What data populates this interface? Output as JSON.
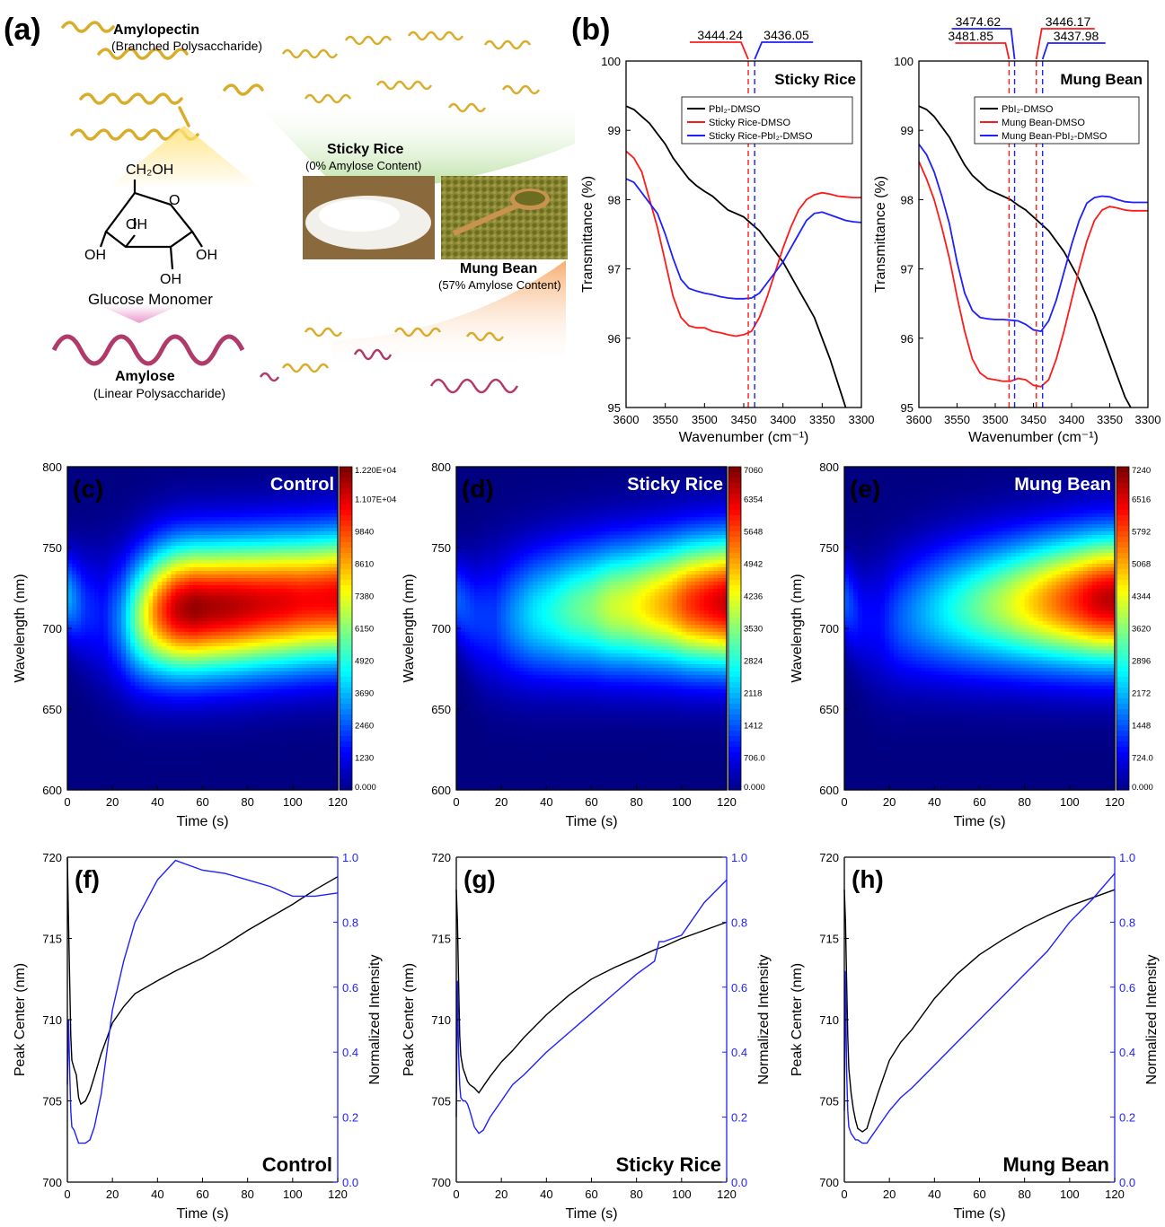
{
  "colors": {
    "black": "#000000",
    "red": "#ff1a1a",
    "blue": "#1f1fff",
    "amylopectin": "#d9ad2a",
    "amylose": "#b03a6a"
  },
  "panel_a": {
    "label": "(a)",
    "amylopectin_title": "Amylopectin",
    "amylopectin_sub": "(Branched Polysaccharide)",
    "glucose_ch2oh": "CH₂OH",
    "glucose_oh": "OH",
    "glucose_o": "O",
    "glucose_label": "Glucose Monomer",
    "amylose_title": "Amylose",
    "amylose_sub": "(Linear Polysaccharide)",
    "sticky_title": "Sticky Rice",
    "sticky_sub": "(0% Amylose Content)",
    "mung_title": "Mung Bean",
    "mung_sub": "(57% Amylose Content)"
  },
  "panel_b_label": "(b)",
  "chart_data": [
    {
      "panel": "(b)",
      "type": "line",
      "title": "Sticky Rice",
      "xlabel": "Wavenumber (cm⁻¹)",
      "ylabel": "Transmittance (%)",
      "xlim": [
        3600,
        3300
      ],
      "ylim": [
        95,
        100
      ],
      "xticks": [
        3600,
        3550,
        3500,
        3450,
        3400,
        3350,
        3300
      ],
      "yticks": [
        95,
        96,
        97,
        98,
        99,
        100
      ],
      "legend": "top-right",
      "peak_labels": [
        "3444.24",
        "3436.05"
      ],
      "peaks": [
        3444.24,
        3436.05
      ],
      "x": [
        3600,
        3590,
        3580,
        3570,
        3560,
        3550,
        3540,
        3530,
        3520,
        3510,
        3500,
        3490,
        3480,
        3470,
        3460,
        3450,
        3440,
        3430,
        3420,
        3410,
        3400,
        3390,
        3380,
        3370,
        3360,
        3350,
        3340,
        3330,
        3320,
        3310,
        3300
      ],
      "series": [
        {
          "name": "PbI₂-DMSO",
          "color": "#000000",
          "values": [
            99.35,
            99.3,
            99.2,
            99.1,
            98.95,
            98.8,
            98.6,
            98.45,
            98.3,
            98.2,
            98.12,
            98.05,
            97.95,
            97.85,
            97.8,
            97.75,
            97.65,
            97.55,
            97.4,
            97.25,
            97.1,
            96.9,
            96.7,
            96.5,
            96.3,
            96.0,
            95.7,
            95.35,
            95.0,
            94.8,
            94.6
          ]
        },
        {
          "name": "Sticky Rice-DMSO",
          "color": "#ff1a1a",
          "values": [
            98.7,
            98.6,
            98.4,
            98.0,
            97.6,
            97.1,
            96.6,
            96.3,
            96.18,
            96.15,
            96.15,
            96.1,
            96.08,
            96.05,
            96.03,
            96.05,
            96.1,
            96.3,
            96.6,
            96.95,
            97.3,
            97.6,
            97.85,
            98.0,
            98.07,
            98.1,
            98.08,
            98.05,
            98.04,
            98.03,
            98.03
          ]
        },
        {
          "name": "Sticky Rice-PbI₂-DMSO",
          "color": "#1f1fff",
          "values": [
            98.3,
            98.25,
            98.1,
            97.95,
            97.8,
            97.5,
            97.15,
            96.85,
            96.72,
            96.68,
            96.65,
            96.63,
            96.6,
            96.58,
            96.57,
            96.57,
            96.58,
            96.65,
            96.8,
            96.95,
            97.1,
            97.3,
            97.5,
            97.7,
            97.8,
            97.82,
            97.78,
            97.74,
            97.7,
            97.68,
            97.67
          ]
        }
      ]
    },
    {
      "panel": "(b)",
      "type": "line",
      "title": "Mung Bean",
      "xlabel": "Wavenumber (cm⁻¹)",
      "ylabel": "Transmittance (%)",
      "xlim": [
        3600,
        3300
      ],
      "ylim": [
        95,
        100
      ],
      "xticks": [
        3600,
        3550,
        3500,
        3450,
        3400,
        3350,
        3300
      ],
      "yticks": [
        95,
        96,
        97,
        98,
        99,
        100
      ],
      "legend": "top-right",
      "peak_labels": [
        "3474.62",
        "3481.85",
        "3446.17",
        "3437.98"
      ],
      "peaks": [
        3474.62,
        3481.85,
        3446.17,
        3437.98
      ],
      "x": [
        3600,
        3590,
        3580,
        3570,
        3560,
        3550,
        3540,
        3530,
        3520,
        3510,
        3500,
        3490,
        3480,
        3470,
        3460,
        3450,
        3440,
        3430,
        3420,
        3410,
        3400,
        3390,
        3380,
        3370,
        3360,
        3350,
        3340,
        3330,
        3320,
        3310,
        3300
      ],
      "series": [
        {
          "name": "PbI₂-DMSO",
          "color": "#000000",
          "values": [
            99.35,
            99.3,
            99.2,
            99.05,
            98.9,
            98.7,
            98.5,
            98.35,
            98.25,
            98.15,
            98.1,
            98.05,
            98.0,
            97.92,
            97.85,
            97.75,
            97.65,
            97.55,
            97.4,
            97.25,
            97.05,
            96.85,
            96.6,
            96.35,
            96.05,
            95.75,
            95.45,
            95.15,
            94.95,
            94.8,
            94.7
          ]
        },
        {
          "name": "Mung Bean-DMSO",
          "color": "#ff1a1a",
          "values": [
            98.55,
            98.3,
            98.0,
            97.6,
            97.15,
            96.6,
            96.1,
            95.7,
            95.5,
            95.42,
            95.4,
            95.38,
            95.38,
            95.42,
            95.4,
            95.32,
            95.3,
            95.4,
            95.7,
            96.1,
            96.55,
            97.0,
            97.4,
            97.7,
            97.85,
            97.9,
            97.88,
            97.85,
            97.84,
            97.84,
            97.84
          ]
        },
        {
          "name": "Mung Bean-PbI₂-DMSO",
          "color": "#1f1fff",
          "values": [
            98.8,
            98.65,
            98.4,
            98.05,
            97.65,
            97.1,
            96.65,
            96.4,
            96.3,
            96.28,
            96.27,
            96.27,
            96.26,
            96.25,
            96.2,
            96.12,
            96.1,
            96.25,
            96.55,
            96.95,
            97.35,
            97.7,
            97.95,
            98.03,
            98.05,
            98.04,
            98.0,
            97.97,
            97.96,
            97.96,
            97.96
          ]
        }
      ]
    },
    {
      "panel": "(c)",
      "type": "heatmap",
      "title": "Control",
      "xlabel": "Time (s)",
      "ylabel": "Wavelength (nm)",
      "xlim": [
        0,
        120
      ],
      "ylim": [
        600,
        800
      ],
      "xticks": [
        0,
        20,
        40,
        60,
        80,
        100,
        120
      ],
      "yticks": [
        600,
        650,
        700,
        750,
        800
      ],
      "colorbar_ticks": [
        "1.220E+04",
        "1.107E+04",
        "9840",
        "8610",
        "7380",
        "6150",
        "4920",
        "3690",
        "2460",
        "1230",
        "0.000"
      ],
      "vmax": 12200,
      "peak_center": [
        720,
        712.6,
        706.9,
        705.6,
        707.7,
        710.4,
        711.8,
        712.5,
        713.1,
        713.8,
        714.6,
        715.5,
        716.3,
        717.1,
        718.0,
        718.8
      ],
      "peak_intensity": [
        0.3,
        0.17,
        0.14,
        0.27,
        0.53,
        0.77,
        0.93,
        0.98,
        0.96,
        0.95,
        0.93,
        0.91,
        0.9,
        0.88,
        0.88,
        0.89
      ]
    },
    {
      "panel": "(d)",
      "type": "heatmap",
      "title": "Sticky Rice",
      "xlabel": "Time (s)",
      "ylabel": "Wavelength (nm)",
      "xlim": [
        0,
        120
      ],
      "ylim": [
        600,
        800
      ],
      "xticks": [
        0,
        20,
        40,
        60,
        80,
        100,
        120
      ],
      "yticks": [
        600,
        650,
        700,
        750,
        800
      ],
      "colorbar_ticks": [
        "7060",
        "6354",
        "5648",
        "4942",
        "4236",
        "3530",
        "2824",
        "2118",
        "1412",
        "706.0",
        "0.000"
      ],
      "vmax": 7060,
      "peak_center": [
        717.5,
        707.4,
        705.8,
        707.3,
        708.9,
        710.3,
        711.5,
        712.5,
        713.2,
        713.8,
        714.4,
        715.0,
        715.4,
        715.8,
        716.0
      ],
      "peak_intensity": [
        0.22,
        0.18,
        0.18,
        0.27,
        0.35,
        0.4,
        0.46,
        0.5,
        0.57,
        0.6,
        0.66,
        0.72,
        0.82,
        0.88,
        0.93
      ]
    },
    {
      "panel": "(e)",
      "type": "heatmap",
      "title": "Mung Bean",
      "xlabel": "Time (s)",
      "ylabel": "Wavelength (nm)",
      "xlim": [
        0,
        120
      ],
      "ylim": [
        600,
        800
      ],
      "xticks": [
        0,
        20,
        40,
        60,
        80,
        100,
        120
      ],
      "yticks": [
        600,
        650,
        700,
        750,
        800
      ],
      "colorbar_ticks": [
        "7240",
        "6516",
        "5792",
        "5068",
        "4344",
        "3620",
        "2896",
        "2172",
        "1448",
        "724.0",
        "0.000"
      ],
      "vmax": 7240,
      "peak_center": [
        717.5,
        705.5,
        703.4,
        705.7,
        708.3,
        710.3,
        711.8,
        712.9,
        713.9,
        714.7,
        715.4,
        716.1,
        716.7,
        717.2,
        717.6,
        718.0
      ],
      "peak_intensity": [
        0.22,
        0.13,
        0.13,
        0.21,
        0.27,
        0.33,
        0.39,
        0.45,
        0.51,
        0.57,
        0.64,
        0.71,
        0.78,
        0.85,
        0.92,
        0.95
      ]
    },
    {
      "panel": "(f)",
      "type": "line",
      "title": "Control",
      "xlabel": "Time (s)",
      "ylabel": "Peak Center (nm)",
      "y2label": "Normalized Intensity",
      "xlim": [
        0,
        120
      ],
      "ylim": [
        700,
        720
      ],
      "y2lim": [
        0.0,
        1.0
      ],
      "xticks": [
        0,
        20,
        40,
        60,
        80,
        100,
        120
      ],
      "yticks": [
        700,
        705,
        710,
        715,
        720
      ],
      "y2ticks": [
        0.0,
        0.2,
        0.4,
        0.6,
        0.8,
        1.0
      ],
      "x": [
        0,
        0.5,
        1,
        1.5,
        2,
        3,
        4,
        5,
        6,
        8,
        10,
        12,
        15,
        20,
        25,
        30,
        40,
        48,
        60,
        70,
        80,
        90,
        100,
        110,
        120
      ],
      "series": [
        {
          "name": "Peak Center",
          "axis": "left",
          "color": "#000000",
          "values": [
            720,
            716,
            712.6,
            709,
            707.5,
            707,
            706.6,
            705.2,
            704.8,
            705,
            705.6,
            706.5,
            707.9,
            709.8,
            710.8,
            711.6,
            712.4,
            713,
            713.8,
            714.6,
            715.5,
            716.3,
            717.1,
            718.0,
            718.8
          ]
        },
        {
          "name": "Normalized Intensity",
          "axis": "right",
          "color": "#1f1fff",
          "values": [
            0.3,
            0.5,
            0.35,
            0.22,
            0.17,
            0.16,
            0.14,
            0.12,
            0.12,
            0.12,
            0.13,
            0.17,
            0.27,
            0.53,
            0.68,
            0.8,
            0.93,
            0.99,
            0.96,
            0.95,
            0.93,
            0.91,
            0.88,
            0.88,
            0.89
          ]
        }
      ]
    },
    {
      "panel": "(g)",
      "type": "line",
      "title": "Sticky Rice",
      "xlabel": "Time (s)",
      "ylabel": "Peak Center (nm)",
      "y2label": "Normalized Intensity",
      "xlim": [
        0,
        120
      ],
      "ylim": [
        700,
        720
      ],
      "y2lim": [
        0.0,
        1.0
      ],
      "xticks": [
        0,
        20,
        40,
        60,
        80,
        100,
        120
      ],
      "yticks": [
        700,
        705,
        710,
        715,
        720
      ],
      "y2ticks": [
        0.0,
        0.2,
        0.4,
        0.6,
        0.8,
        1.0
      ],
      "x": [
        0,
        0.5,
        1,
        1.5,
        2,
        3,
        4,
        5,
        6,
        8,
        10,
        12,
        15,
        20,
        25,
        30,
        40,
        50,
        60,
        70,
        80,
        88,
        90,
        92,
        100,
        110,
        120
      ],
      "series": [
        {
          "name": "Peak Center",
          "axis": "left",
          "color": "#000000",
          "values": [
            718,
            716,
            712.5,
            709,
            707.8,
            707,
            706.6,
            706.2,
            706,
            705.8,
            705.5,
            705.9,
            706.5,
            707.4,
            708.1,
            708.9,
            710.3,
            711.5,
            712.5,
            713.2,
            713.8,
            714.3,
            714.4,
            714.5,
            715.0,
            715.5,
            716.0
          ]
        },
        {
          "name": "Normalized Intensity",
          "axis": "right",
          "color": "#1f1fff",
          "values": [
            0.2,
            0.62,
            0.4,
            0.3,
            0.26,
            0.25,
            0.25,
            0.24,
            0.22,
            0.17,
            0.15,
            0.16,
            0.2,
            0.25,
            0.3,
            0.33,
            0.4,
            0.46,
            0.52,
            0.58,
            0.64,
            0.68,
            0.74,
            0.74,
            0.76,
            0.86,
            0.93
          ]
        }
      ]
    },
    {
      "panel": "(h)",
      "type": "line",
      "title": "Mung Bean",
      "xlabel": "Time (s)",
      "ylabel": "Peak Center (nm)",
      "y2label": "Normalized Intensity",
      "xlim": [
        0,
        120
      ],
      "ylim": [
        700,
        720
      ],
      "y2lim": [
        0.0,
        1.0
      ],
      "xticks": [
        0,
        20,
        40,
        60,
        80,
        100,
        120
      ],
      "yticks": [
        700,
        705,
        710,
        715,
        720
      ],
      "y2ticks": [
        0.0,
        0.2,
        0.4,
        0.6,
        0.8,
        1.0
      ],
      "x": [
        0,
        0.5,
        1,
        1.5,
        2,
        3,
        4,
        5,
        6,
        8,
        10,
        12,
        15,
        20,
        25,
        30,
        40,
        50,
        60,
        70,
        80,
        90,
        100,
        110,
        120
      ],
      "series": [
        {
          "name": "Peak Center",
          "axis": "left",
          "color": "#000000",
          "values": [
            718,
            716,
            712.5,
            709,
            707,
            705.5,
            704.5,
            703.8,
            703.3,
            703.1,
            703.3,
            704.2,
            705.5,
            707.5,
            708.6,
            709.4,
            711.3,
            712.8,
            714.0,
            714.9,
            715.7,
            716.4,
            717,
            717.5,
            718.0
          ]
        },
        {
          "name": "Normalized Intensity",
          "axis": "right",
          "color": "#1f1fff",
          "values": [
            0.22,
            0.65,
            0.35,
            0.22,
            0.17,
            0.15,
            0.14,
            0.13,
            0.13,
            0.12,
            0.12,
            0.14,
            0.17,
            0.22,
            0.26,
            0.29,
            0.36,
            0.43,
            0.5,
            0.57,
            0.64,
            0.71,
            0.8,
            0.87,
            0.95
          ]
        }
      ]
    }
  ]
}
